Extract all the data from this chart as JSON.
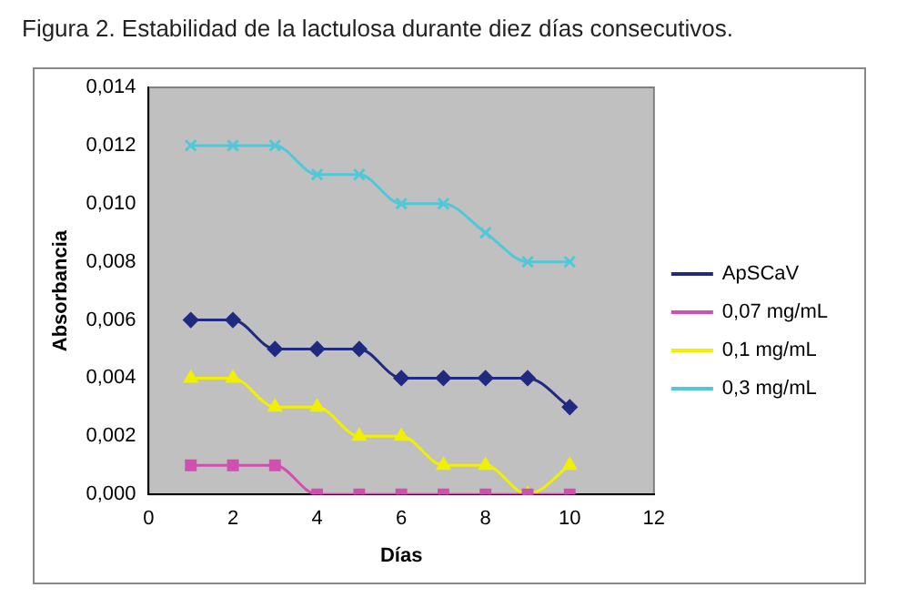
{
  "chart_data": {
    "type": "line",
    "title": "Figura 2. Estabilidad de la lactulosa durante diez días consecutivos.",
    "xlabel": "Días",
    "ylabel": "Absorbancia",
    "x": [
      1,
      2,
      3,
      4,
      5,
      6,
      7,
      8,
      9,
      10
    ],
    "series": [
      {
        "name": "ApSCaV",
        "color": "#1f2a80",
        "marker": "diamond",
        "values": [
          0.006,
          0.006,
          0.005,
          0.005,
          0.005,
          0.004,
          0.004,
          0.004,
          0.004,
          0.003
        ]
      },
      {
        "name": "0,07 mg/mL",
        "color": "#d050b0",
        "marker": "square",
        "values": [
          0.001,
          0.001,
          0.001,
          0,
          0,
          0,
          0,
          0,
          0,
          0
        ]
      },
      {
        "name": "0,1 mg/mL",
        "color": "#f0f000",
        "marker": "triangle",
        "values": [
          0.004,
          0.004,
          0.003,
          0.003,
          0.002,
          0.002,
          0.001,
          0.001,
          0,
          0.001
        ]
      },
      {
        "name": "0,3 mg/mL",
        "color": "#50c8d8",
        "marker": "cross",
        "values": [
          0.012,
          0.012,
          0.012,
          0.011,
          0.011,
          0.01,
          0.01,
          0.009,
          0.008,
          0.008
        ]
      }
    ],
    "xlim": [
      0,
      12
    ],
    "xticks": [
      0,
      2,
      4,
      6,
      8,
      10,
      12
    ],
    "ylim": [
      0,
      0.014
    ],
    "yticks": [
      {
        "value": 0,
        "label": "0,000"
      },
      {
        "value": 0.002,
        "label": "0,002"
      },
      {
        "value": 0.004,
        "label": "0,004"
      },
      {
        "value": 0.006,
        "label": "0,006"
      },
      {
        "value": 0.008,
        "label": "0,008"
      },
      {
        "value": 0.01,
        "label": "0,010"
      },
      {
        "value": 0.012,
        "label": "0,012"
      },
      {
        "value": 0.014,
        "label": "0,014"
      }
    ],
    "grid": false,
    "legend": "right",
    "line_style": "solid"
  }
}
